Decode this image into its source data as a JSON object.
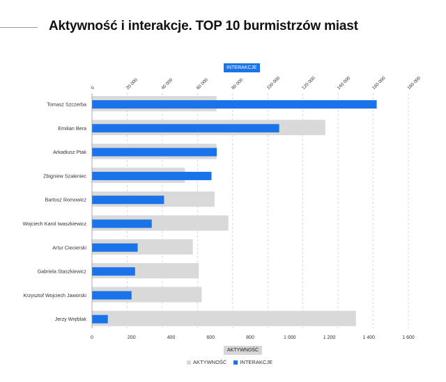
{
  "title": "Aktywność i interakcje. TOP 10 burmistrzów miast",
  "chart_data": {
    "type": "bar",
    "orientation": "horizontal",
    "categories": [
      "Tomasz Szczerba",
      "Emilian Bera",
      "Arkadiusz Ptak",
      "Zbigniew Szaleniec",
      "Bartosz Romowicz",
      "Wojciech Karol Iwaszkiewicz",
      "Artur Ciecierski",
      "Gabriela Staszkiewicz",
      "Krzysztof Wojciech Jaworski",
      "Jerzy Wręblak"
    ],
    "series": [
      {
        "name": "AKTYWNOŚĆ",
        "axis": "bottom",
        "color": "#d9d9d9",
        "values": [
          630,
          1180,
          630,
          470,
          620,
          690,
          510,
          540,
          555,
          1335
        ]
      },
      {
        "name": "INTERAKCJE",
        "axis": "top",
        "color": "#1a73e8",
        "values": [
          162000,
          106500,
          71000,
          68000,
          41000,
          34000,
          26000,
          24500,
          22500,
          9000
        ]
      }
    ],
    "bottom_axis": {
      "label": "AKTYWNOŚĆ",
      "range": [
        0,
        1600
      ],
      "tick_labels": [
        "0",
        "200",
        "400",
        "600",
        "800",
        "1 000",
        "1 200",
        "1 400",
        "1 600"
      ]
    },
    "top_axis": {
      "label": "INTERAKCJE",
      "range": [
        0,
        180000
      ],
      "tick_labels": [
        "0",
        "20 000",
        "40 000",
        "60 000",
        "80 000",
        "100 000",
        "120 000",
        "140 000",
        "160 000",
        "180 000"
      ]
    },
    "grid": "vertical dashed",
    "legend_position": "bottom-center"
  }
}
